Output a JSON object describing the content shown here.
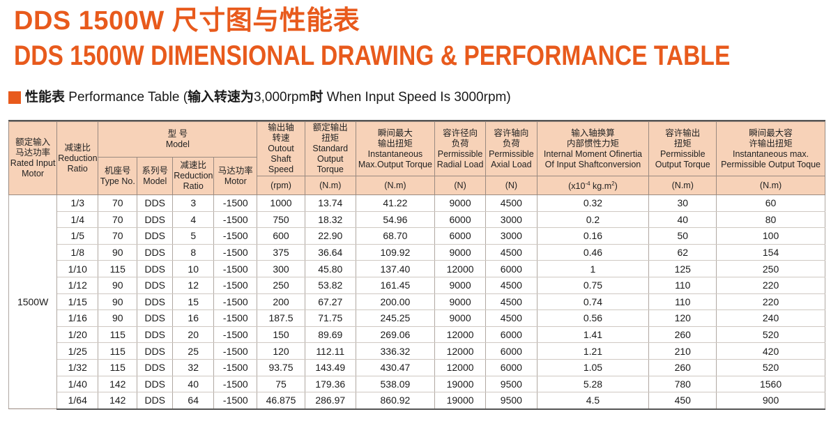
{
  "title_cn": "DDS 1500W 尺寸图与性能表",
  "title_en": "DDS 1500W DIMENSIONAL DRAWING & PERFORMANCE TABLE",
  "section": {
    "cn_bold": "性能表",
    "en": " Performance Table (",
    "cn2_bold": "输入转速为",
    "value": "3,000rpm",
    "cn3_bold": "时",
    "en2": " When Input Speed Is 3000rpm)"
  },
  "headers": {
    "rated_motor": [
      "额定输入",
      "马达功率",
      "Rated Input",
      "Motor"
    ],
    "ratio": [
      "减速比",
      "Reduction",
      "Ratio"
    ],
    "model": [
      "型 号",
      "Model"
    ],
    "type_no": [
      "机座号",
      "Type No."
    ],
    "series": [
      "系列号",
      "Model"
    ],
    "red_ratio": [
      "减速比",
      "Reduction",
      "Ratio"
    ],
    "motor_power": [
      "马达功率",
      "Motor"
    ],
    "speed": [
      "输出轴",
      "转速",
      "Outout",
      "Shaft Speed"
    ],
    "torque": [
      "额定输出",
      "扭矩",
      "Standard",
      "Output Torque"
    ],
    "max_torque": [
      "瞬间最大",
      "输出扭矩",
      "Instantaneous",
      "Max.Output Torque"
    ],
    "radial": [
      "容许径向",
      "负荷",
      "Permissible",
      "Radial Load"
    ],
    "axial": [
      "容许轴向",
      "负荷",
      "Permissible",
      "Axial Load"
    ],
    "inertia": [
      "输入轴换算",
      "内部惯性力矩",
      "Internal Moment Ofinertia",
      "Of Input Shaftconversion"
    ],
    "perm_torque": [
      "容许输出",
      "扭矩",
      "Permissible",
      "Output Torque"
    ],
    "perm_max": [
      "瞬间最大容",
      "许输出扭矩",
      "Instantaneous max.",
      "Permissible Output Toque"
    ]
  },
  "units": {
    "speed": "(rpm)",
    "torque": "(N.m)",
    "max_torque": "(N.m)",
    "radial": "(N)",
    "axial": "(N)",
    "inertia_pre": "(x10",
    "inertia_exp": "-4",
    "inertia_mid": " kg.m",
    "inertia_sq": "2",
    "inertia_post": ")",
    "perm_torque": "(N.m)",
    "perm_max": "(N.m)"
  },
  "motor_power": "1500W",
  "rows": [
    [
      "1/3",
      "70",
      "DDS",
      "3",
      "-1500",
      "1000",
      "13.74",
      "41.22",
      "9000",
      "4500",
      "0.32",
      "30",
      "60"
    ],
    [
      "1/4",
      "70",
      "DDS",
      "4",
      "-1500",
      "750",
      "18.32",
      "54.96",
      "6000",
      "3000",
      "0.2",
      "40",
      "80"
    ],
    [
      "1/5",
      "70",
      "DDS",
      "5",
      "-1500",
      "600",
      "22.90",
      "68.70",
      "6000",
      "3000",
      "0.16",
      "50",
      "100"
    ],
    [
      "1/8",
      "90",
      "DDS",
      "8",
      "-1500",
      "375",
      "36.64",
      "109.92",
      "9000",
      "4500",
      "0.46",
      "62",
      "154"
    ],
    [
      "1/10",
      "115",
      "DDS",
      "10",
      "-1500",
      "300",
      "45.80",
      "137.40",
      "12000",
      "6000",
      "1",
      "125",
      "250"
    ],
    [
      "1/12",
      "90",
      "DDS",
      "12",
      "-1500",
      "250",
      "53.82",
      "161.45",
      "9000",
      "4500",
      "0.75",
      "110",
      "220"
    ],
    [
      "1/15",
      "90",
      "DDS",
      "15",
      "-1500",
      "200",
      "67.27",
      "200.00",
      "9000",
      "4500",
      "0.74",
      "110",
      "220"
    ],
    [
      "1/16",
      "90",
      "DDS",
      "16",
      "-1500",
      "187.5",
      "71.75",
      "245.25",
      "9000",
      "4500",
      "0.56",
      "120",
      "240"
    ],
    [
      "1/20",
      "115",
      "DDS",
      "20",
      "-1500",
      "150",
      "89.69",
      "269.06",
      "12000",
      "6000",
      "1.41",
      "260",
      "520"
    ],
    [
      "1/25",
      "115",
      "DDS",
      "25",
      "-1500",
      "120",
      "112.11",
      "336.32",
      "12000",
      "6000",
      "1.21",
      "210",
      "420"
    ],
    [
      "1/32",
      "115",
      "DDS",
      "32",
      "-1500",
      "93.75",
      "143.49",
      "430.47",
      "12000",
      "6000",
      "1.05",
      "260",
      "520"
    ],
    [
      "1/40",
      "142",
      "DDS",
      "40",
      "-1500",
      "75",
      "179.36",
      "538.09",
      "19000",
      "9500",
      "5.28",
      "780",
      "1560"
    ],
    [
      "1/64",
      "142",
      "DDS",
      "64",
      "-1500",
      "46.875",
      "286.97",
      "860.92",
      "19000",
      "9500",
      "4.5",
      "450",
      "900"
    ]
  ]
}
